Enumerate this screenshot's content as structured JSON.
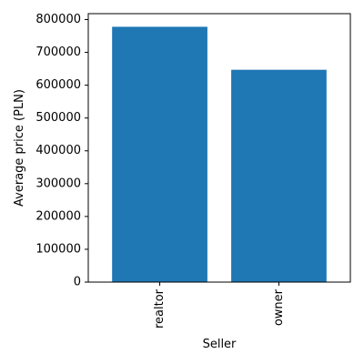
{
  "chart_data": {
    "type": "bar",
    "categories": [
      "realtor",
      "owner"
    ],
    "values": [
      778000,
      647000
    ],
    "xlabel": "Seller",
    "ylabel": "Average price (PLN)",
    "ylim": [
      0,
      818000
    ],
    "yticks": [
      0,
      100000,
      200000,
      300000,
      400000,
      500000,
      600000,
      700000,
      800000
    ],
    "bar_color": "#1f77b4",
    "grid": false,
    "xtick_rotation_degrees": 90
  }
}
